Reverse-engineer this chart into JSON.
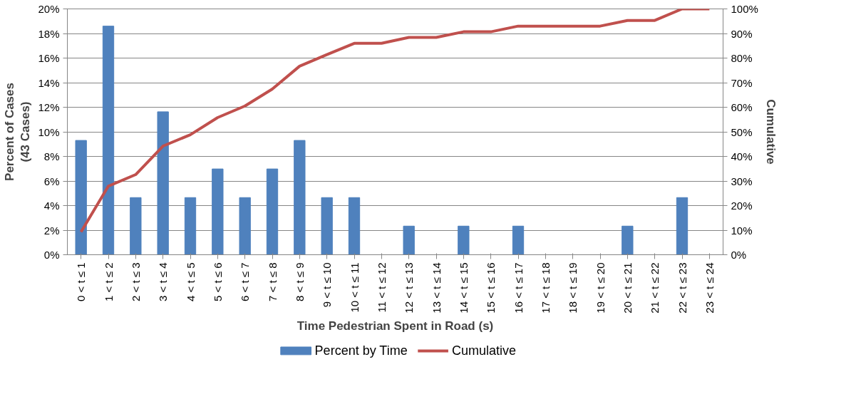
{
  "chart_data": {
    "type": "bar",
    "xlabel": "Time Pedestrian Spent in Road (s)",
    "ylabel": "Percent of Cases\n(43 Cases)",
    "y2label": "Cumulative",
    "categories": [
      "0 < t ≤ 1",
      "1 < t ≤ 2",
      "2 < t ≤ 3",
      "3 < t ≤ 4",
      "4 < t ≤ 5",
      "5 < t ≤ 6",
      "6 < t ≤ 7",
      "7 < t ≤ 8",
      "8 < t ≤ 9",
      "9 < t ≤ 10",
      "10 < t ≤ 11",
      "11 < t ≤ 12",
      "12 < t ≤ 13",
      "13 < t ≤ 14",
      "14 < t ≤ 15",
      "15 < t ≤ 16",
      "16 < t ≤ 17",
      "17 < t ≤ 18",
      "18 < t ≤ 19",
      "19 < t ≤ 20",
      "20 < t ≤ 21",
      "21 < t ≤ 22",
      "22 < t ≤ 23",
      "23 < t ≤ 24"
    ],
    "series": [
      {
        "name": "Percent by Time",
        "color": "#4f81bd",
        "values": [
          9.3,
          18.6,
          4.65,
          11.63,
          4.65,
          6.98,
          4.65,
          6.98,
          9.3,
          4.65,
          4.65,
          0,
          2.33,
          0,
          2.33,
          0,
          2.33,
          0,
          0,
          0,
          2.33,
          0,
          4.65,
          0
        ]
      },
      {
        "name": "Cumulative",
        "type": "line",
        "axis": "y2",
        "color": "#c0504d",
        "values": [
          9.3,
          27.9,
          32.6,
          44.2,
          48.8,
          55.8,
          60.5,
          67.4,
          76.7,
          81.4,
          86.0,
          86.0,
          88.4,
          88.4,
          90.7,
          90.7,
          93.0,
          93.0,
          93.0,
          93.0,
          95.3,
          95.3,
          100,
          100
        ]
      }
    ],
    "ylim": [
      0,
      20
    ],
    "yticks": [
      {
        "value": 0,
        "label": "0%"
      },
      {
        "value": 2,
        "label": "2%"
      },
      {
        "value": 4,
        "label": "4%"
      },
      {
        "value": 6,
        "label": "6%"
      },
      {
        "value": 8,
        "label": "8%"
      },
      {
        "value": 10,
        "label": "10%"
      },
      {
        "value": 12,
        "label": "12%"
      },
      {
        "value": 14,
        "label": "14%"
      },
      {
        "value": 16,
        "label": "16%"
      },
      {
        "value": 18,
        "label": "18%"
      },
      {
        "value": 20,
        "label": "20%"
      }
    ],
    "y2lim": [
      0,
      100
    ],
    "y2ticks": [
      {
        "value": 0,
        "label": "0%"
      },
      {
        "value": 10,
        "label": "10%"
      },
      {
        "value": 20,
        "label": "20%"
      },
      {
        "value": 30,
        "label": "30%"
      },
      {
        "value": 40,
        "label": "40%"
      },
      {
        "value": 50,
        "label": "50%"
      },
      {
        "value": 60,
        "label": "60%"
      },
      {
        "value": 70,
        "label": "70%"
      },
      {
        "value": 80,
        "label": "80%"
      },
      {
        "value": 90,
        "label": "90%"
      },
      {
        "value": 100,
        "label": "100%"
      }
    ],
    "grid": "y",
    "legend": "bottom",
    "marker": "none",
    "line_style": "solid"
  }
}
